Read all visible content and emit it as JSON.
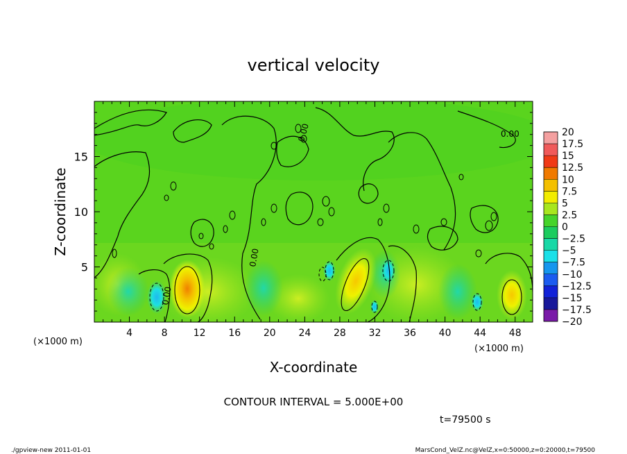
{
  "chart_data": {
    "type": "heatmap",
    "title": "vertical velocity",
    "xlabel": "X-coordinate",
    "ylabel": "Z-coordinate",
    "x_unit_left": "(×1000 m)",
    "x_unit_right": "(×1000 m)",
    "xlim": [
      0,
      50
    ],
    "ylim": [
      0,
      20
    ],
    "xticks": [
      4,
      8,
      12,
      16,
      20,
      24,
      28,
      32,
      36,
      40,
      44,
      48
    ],
    "yticks": [
      5,
      10,
      15
    ],
    "colorbar": {
      "labels": [
        "20",
        "17.5",
        "15",
        "12.5",
        "10",
        "7.5",
        "5",
        "2.5",
        "0",
        "−2.5",
        "−5",
        "−7.5",
        "−10",
        "−12.5",
        "−15",
        "−17.5",
        "−20"
      ],
      "bands": [
        {
          "lo": 17.5,
          "hi": 20,
          "color": "#f4a0a0"
        },
        {
          "lo": 15,
          "hi": 17.5,
          "color": "#f05a5a"
        },
        {
          "lo": 12.5,
          "hi": 15,
          "color": "#f03a16"
        },
        {
          "lo": 10,
          "hi": 12.5,
          "color": "#f07a00"
        },
        {
          "lo": 7.5,
          "hi": 10,
          "color": "#f4c000"
        },
        {
          "lo": 5,
          "hi": 7.5,
          "color": "#f2ec00"
        },
        {
          "lo": 2.5,
          "hi": 5,
          "color": "#a8e61e"
        },
        {
          "lo": 0,
          "hi": 2.5,
          "color": "#46d42a"
        },
        {
          "lo": -2.5,
          "hi": 0,
          "color": "#1ccc5e"
        },
        {
          "lo": -5,
          "hi": -2.5,
          "color": "#18d8a6"
        },
        {
          "lo": -7.5,
          "hi": -5,
          "color": "#1ae0e8"
        },
        {
          "lo": -10,
          "hi": -7.5,
          "color": "#1696ee"
        },
        {
          "lo": -12.5,
          "hi": -10,
          "color": "#1c5cf0"
        },
        {
          "lo": -15,
          "hi": -12.5,
          "color": "#1222d8"
        },
        {
          "lo": -17.5,
          "hi": -15,
          "color": "#18189a"
        },
        {
          "lo": -20,
          "hi": -17.5,
          "color": "#7a1aa8"
        }
      ]
    },
    "features": [
      {
        "kind": "updraft",
        "x": 10.5,
        "z": 2.8,
        "peak": 9.0
      },
      {
        "kind": "updraft",
        "x": 29.8,
        "z": 3.3,
        "peak": 8.0
      },
      {
        "kind": "updraft",
        "x": 47.3,
        "z": 2.6,
        "peak": 7.0
      },
      {
        "kind": "downdraft",
        "x": 7.2,
        "z": 2.2,
        "peak": -6.0
      },
      {
        "kind": "downdraft",
        "x": 33.5,
        "z": 4.5,
        "peak": -5.0
      },
      {
        "kind": "downdraft",
        "x": 26.8,
        "z": 4.2,
        "peak": -4.0
      },
      {
        "kind": "downdraft",
        "x": 43.5,
        "z": 1.7,
        "peak": -4.0
      }
    ],
    "contour_labels": [
      "0.00",
      "0.00",
      "0.00",
      "0.00"
    ],
    "contour_interval_text": "CONTOUR INTERVAL = 5.000E+00",
    "time_text": "t=79500 s"
  },
  "footer": {
    "left": "./gpview-new 2011-01-01",
    "right": "MarsCond_VelZ.nc@VelZ,x=0:50000,z=0:20000,t=79500"
  }
}
